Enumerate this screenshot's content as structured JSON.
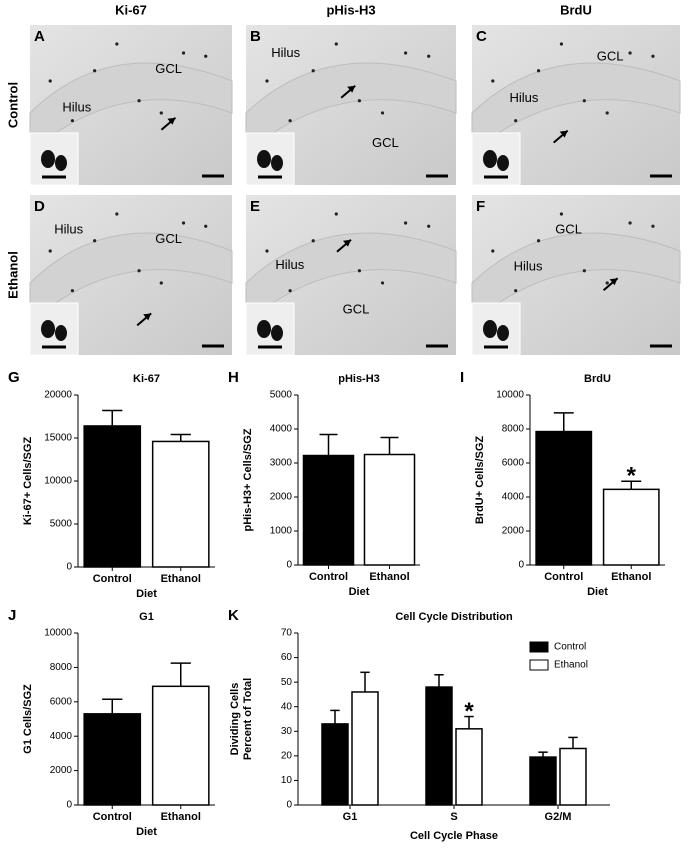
{
  "figure": {
    "column_headers": [
      "Ki-67",
      "pHis-H3",
      "BrdU"
    ],
    "row_labels": [
      "Control",
      "Ethanol"
    ],
    "micrographs": [
      {
        "panel": "A",
        "labels": [
          "GCL",
          "Hilus"
        ]
      },
      {
        "panel": "B",
        "labels": [
          "Hilus",
          "GCL"
        ]
      },
      {
        "panel": "C",
        "labels": [
          "GCL",
          "Hilus"
        ]
      },
      {
        "panel": "D",
        "labels": [
          "Hilus",
          "GCL"
        ]
      },
      {
        "panel": "E",
        "labels": [
          "Hilus",
          "GCL"
        ]
      },
      {
        "panel": "F",
        "labels": [
          "GCL",
          "Hilus"
        ]
      }
    ]
  },
  "chart_data": [
    {
      "type": "bar",
      "panel": "G",
      "title": "Ki-67",
      "ylabel": [
        "Ki-67+ Cells/SGZ"
      ],
      "xlabel": "Diet",
      "categories": [
        "Control",
        "Ethanol"
      ],
      "values": [
        16400,
        14600
      ],
      "errors": [
        1800,
        800
      ],
      "colors": [
        "#000000",
        "#ffffff"
      ],
      "ylim": [
        0,
        20000
      ],
      "yticks": [
        0,
        5000,
        10000,
        15000,
        20000
      ]
    },
    {
      "type": "bar",
      "panel": "H",
      "title": "pHis-H3",
      "ylabel": [
        "pHis-H3+ Cells/SGZ"
      ],
      "xlabel": "Diet",
      "categories": [
        "Control",
        "Ethanol"
      ],
      "values": [
        3220,
        3250
      ],
      "errors": [
        620,
        500
      ],
      "colors": [
        "#000000",
        "#ffffff"
      ],
      "ylim": [
        0,
        5000
      ],
      "yticks": [
        0,
        1000,
        2000,
        3000,
        4000,
        5000
      ]
    },
    {
      "type": "bar",
      "panel": "I",
      "title": "BrdU",
      "ylabel": [
        "BrdU+ Cells/SGZ"
      ],
      "xlabel": "Diet",
      "categories": [
        "Control",
        "Ethanol"
      ],
      "values": [
        7850,
        4450
      ],
      "errors": [
        1100,
        480
      ],
      "colors": [
        "#000000",
        "#ffffff"
      ],
      "ylim": [
        0,
        10000
      ],
      "yticks": [
        0,
        2000,
        4000,
        6000,
        8000,
        10000
      ],
      "annotations": [
        {
          "text": "*",
          "category": "Ethanol"
        }
      ]
    },
    {
      "type": "bar",
      "panel": "J",
      "title": "G1",
      "ylabel": [
        "G1 Cells/SGZ"
      ],
      "xlabel": "Diet",
      "categories": [
        "Control",
        "Ethanol"
      ],
      "values": [
        5300,
        6900
      ],
      "errors": [
        850,
        1350
      ],
      "colors": [
        "#000000",
        "#ffffff"
      ],
      "ylim": [
        0,
        10000
      ],
      "yticks": [
        0,
        2000,
        4000,
        6000,
        8000,
        10000
      ]
    },
    {
      "type": "grouped-bar",
      "panel": "K",
      "title": "Cell Cycle Distribution",
      "ylabel": [
        "Percent of Total",
        "Dividing Cells"
      ],
      "xlabel": "Cell Cycle Phase",
      "categories": [
        "G1",
        "S",
        "G2/M"
      ],
      "series": [
        {
          "name": "Control",
          "color": "#000000",
          "values": [
            33,
            48,
            19.5
          ],
          "errors": [
            5.5,
            5,
            2
          ]
        },
        {
          "name": "Ethanol",
          "color": "#ffffff",
          "values": [
            46,
            31,
            23
          ],
          "errors": [
            8,
            5,
            4.5
          ]
        }
      ],
      "ylim": [
        0,
        70
      ],
      "yticks": [
        0,
        10,
        20,
        30,
        40,
        50,
        60,
        70
      ],
      "legend": "top-right",
      "annotations": [
        {
          "text": "*",
          "category": "S",
          "series": "Ethanol"
        }
      ]
    }
  ]
}
